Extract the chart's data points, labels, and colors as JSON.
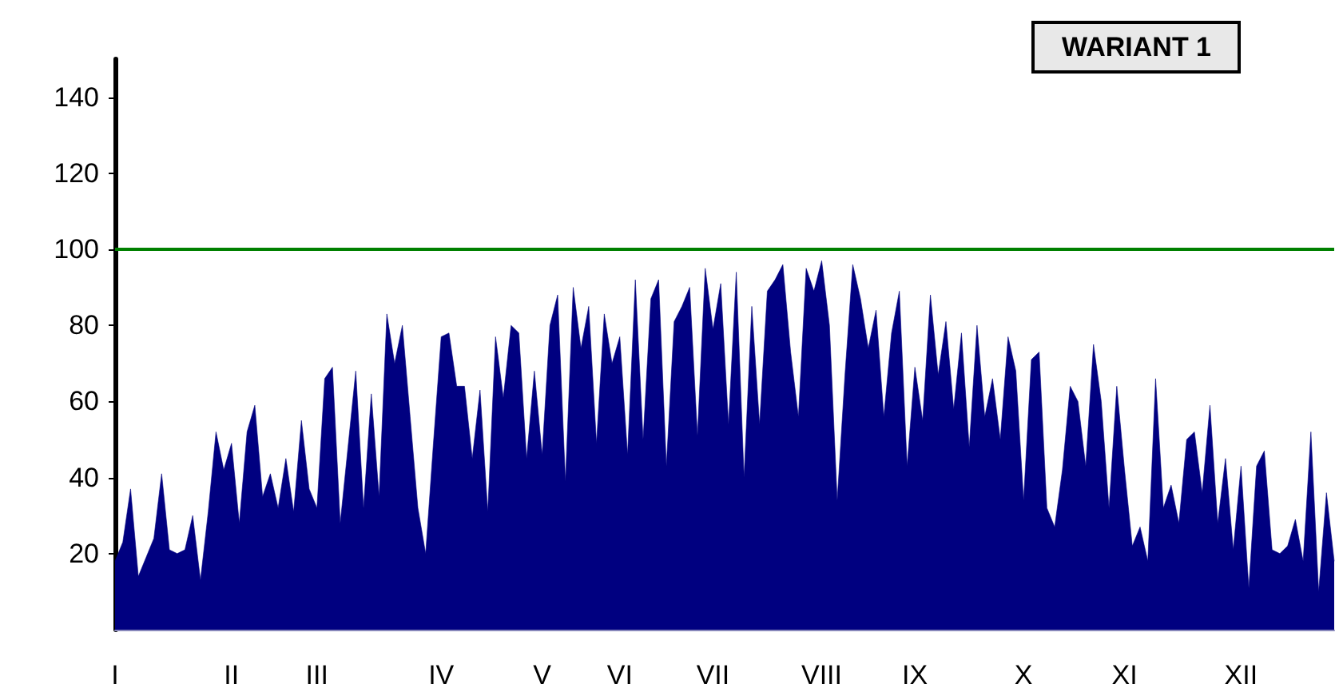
{
  "chart_data": {
    "type": "area",
    "title": "WARIANT 1",
    "categories": [
      "I",
      null,
      null,
      null,
      null,
      null,
      null,
      null,
      null,
      null,
      null,
      null,
      null,
      null,
      null,
      "II",
      null,
      null,
      null,
      null,
      null,
      null,
      null,
      null,
      null,
      null,
      "III",
      null,
      null,
      null,
      null,
      null,
      null,
      null,
      null,
      null,
      null,
      null,
      null,
      null,
      null,
      null,
      "IV",
      null,
      null,
      null,
      null,
      null,
      null,
      null,
      null,
      null,
      null,
      null,
      null,
      "V",
      null,
      null,
      null,
      null,
      null,
      null,
      null,
      null,
      null,
      "VI",
      null,
      null,
      null,
      null,
      null,
      null,
      null,
      null,
      null,
      null,
      null,
      "VII",
      null,
      null,
      null,
      null,
      null,
      null,
      null,
      null,
      null,
      null,
      null,
      null,
      null,
      "VIII",
      null,
      null,
      null,
      null,
      null,
      null,
      null,
      null,
      null,
      null,
      null,
      "IX",
      null,
      null,
      null,
      null,
      null,
      null,
      null,
      null,
      null,
      null,
      null,
      null,
      null,
      "X",
      null,
      null,
      null,
      null,
      null,
      null,
      null,
      null,
      null,
      null,
      null,
      null,
      "XI",
      null,
      null,
      null,
      null,
      null,
      null,
      null,
      null,
      null,
      null,
      null,
      null,
      null,
      null,
      "XII",
      null,
      null,
      null,
      null,
      null,
      null,
      null,
      null,
      null,
      null,
      null,
      null
    ],
    "series": [
      {
        "color": "#000080",
        "values": [
          18,
          23,
          37,
          14,
          19,
          24,
          41,
          21,
          20,
          21,
          30,
          13,
          31,
          52,
          42,
          49,
          28,
          52,
          59,
          35,
          41,
          32,
          45,
          31,
          55,
          37,
          32,
          66,
          69,
          28,
          48,
          68,
          32,
          62,
          35,
          83,
          70,
          80,
          56,
          32,
          20,
          49,
          77,
          78,
          64,
          64,
          45,
          63,
          31,
          77,
          61,
          80,
          78,
          45,
          68,
          46,
          80,
          88,
          39,
          90,
          74,
          85,
          49,
          83,
          70,
          77,
          46,
          92,
          50,
          87,
          92,
          43,
          81,
          85,
          90,
          51,
          95,
          79,
          91,
          54,
          94,
          40,
          85,
          54,
          89,
          92,
          96,
          73,
          56,
          95,
          89,
          97,
          80,
          34,
          67,
          96,
          87,
          74,
          84,
          56,
          78,
          89,
          43,
          69,
          55,
          88,
          67,
          81,
          58,
          78,
          48,
          80,
          56,
          66,
          50,
          77,
          68,
          34,
          71,
          73,
          32,
          27,
          42,
          64,
          60,
          43,
          75,
          60,
          32,
          64,
          42,
          22,
          27,
          18,
          66,
          32,
          38,
          28,
          50,
          52,
          36,
          59,
          28,
          45,
          21,
          43,
          11,
          43,
          47,
          21,
          20,
          22,
          29,
          18,
          52,
          10,
          36,
          18
        ]
      }
    ],
    "ylim": [
      0,
      150
    ],
    "yticks": [
      20,
      40,
      60,
      80,
      100,
      120,
      140
    ],
    "ref_lines": [
      {
        "axis": "y",
        "value": 100,
        "color": "#008000"
      }
    ],
    "grid": false
  }
}
